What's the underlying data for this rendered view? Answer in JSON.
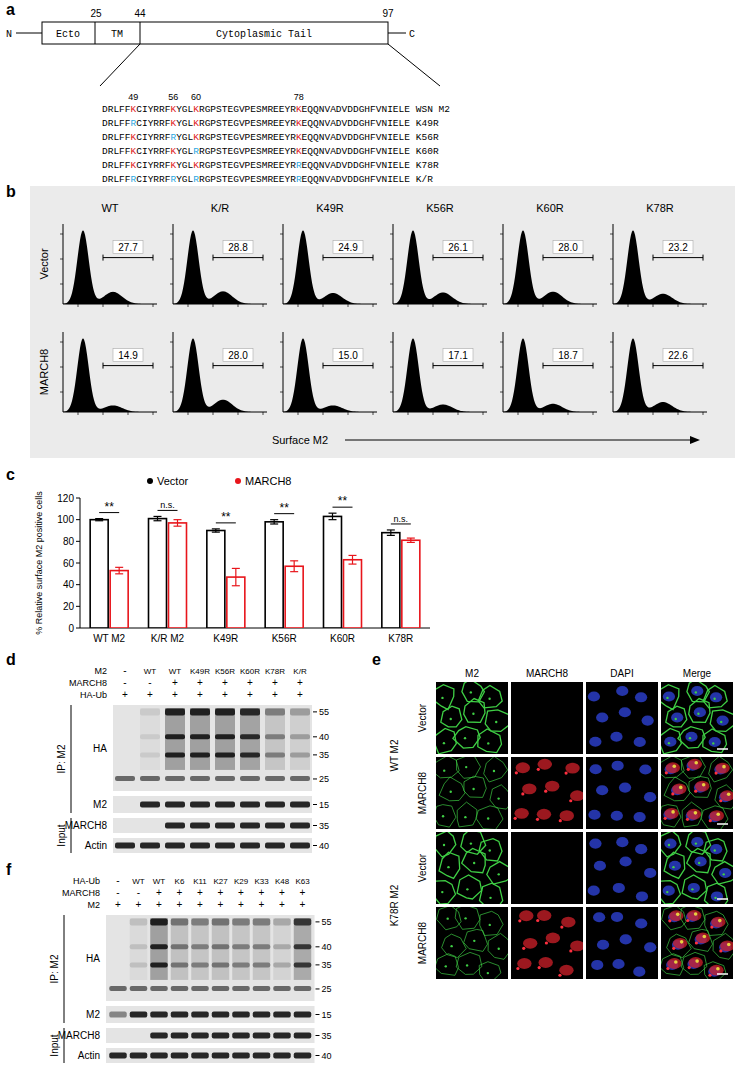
{
  "panel_a": {
    "label": "a",
    "boundaries": [
      25,
      44,
      97
    ],
    "terminals": [
      "N",
      "C"
    ],
    "domains": [
      "Ecto",
      "TM",
      "Cytoplasmic Tail"
    ],
    "lysines": [
      49,
      56,
      60,
      78
    ],
    "sequences": [
      {
        "seq": "DRLFFKCIYRRFKYGLKRGPSTEGVPESMREEYRKEQQNVADVDDGHFVNIELE",
        "name": "WSN M2"
      },
      {
        "seq": "DRLFFRCIYRRFKYGLKRGPSTEGVPESMREEYRKEQQNVADVDDGHFVNIELE",
        "name": "K49R"
      },
      {
        "seq": "DRLFFKCIYRRFRYGLKRGPSTEGVPESMREEYRKEQQNVADVDDGHFVNIELE",
        "name": "K56R"
      },
      {
        "seq": "DRLFFKCIYRRFKYGLRRGPSTEGVPESMREEYRKEQQNVADVDDGHFVNIELE",
        "name": "K60R"
      },
      {
        "seq": "DRLFFKCIYRRFKYGLKRGPSTEGVPESMREEYRREQQNVADVDDGHFVNIELE",
        "name": "K78R"
      },
      {
        "seq": "DRLFFRCIYRRFRYGLRRGPSTEGVPESMREEYRREQQNVADVDDGHFVNIELE",
        "name": "K/R"
      }
    ]
  },
  "panel_b": {
    "label": "b",
    "columns": [
      "WT",
      "K/R",
      "K49R",
      "K56R",
      "K60R",
      "K78R"
    ],
    "rows": [
      {
        "name": "Vector",
        "values": [
          27.7,
          28.8,
          24.9,
          26.1,
          28.0,
          23.2
        ],
        "value_labels": [
          "27.7",
          "28.8",
          "24.9",
          "26.1",
          "28.0",
          "23.2"
        ]
      },
      {
        "name": "MARCH8",
        "values": [
          14.9,
          28.0,
          15.0,
          17.1,
          18.7,
          22.6
        ],
        "value_labels": [
          "14.9",
          "28.0",
          "15.0",
          "17.1",
          "18.7",
          "22.6"
        ]
      }
    ],
    "x_label": "Surface M2"
  },
  "chart_data": {
    "type": "bar",
    "panel_label": "c",
    "categories": [
      "WT M2",
      "K/R M2",
      "K49R",
      "K56R",
      "K60R",
      "K78R"
    ],
    "series": [
      {
        "name": "Vector",
        "color": "#000000",
        "values": [
          100,
          101,
          90,
          98,
          103,
          88
        ],
        "errors": [
          1,
          2,
          1.5,
          2,
          3,
          2.5
        ]
      },
      {
        "name": "MARCH8",
        "color": "#e8151b",
        "values": [
          53,
          97,
          47,
          57,
          63,
          81
        ],
        "errors": [
          3,
          3,
          8,
          5,
          4,
          2
        ]
      }
    ],
    "annotations": [
      "**",
      "n.s.",
      "**",
      "**",
      "**",
      "n.s."
    ],
    "y_label": "% Relative surface M2 positive cells",
    "ylim": [
      0,
      120
    ],
    "yticks": [
      0,
      20,
      40,
      60,
      80,
      100,
      120
    ],
    "legend": "top",
    "grid": false
  },
  "panel_d": {
    "label": "d",
    "lane_rows": [
      {
        "name": "M2",
        "lanes": [
          "-",
          "WT",
          "WT",
          "K49R",
          "K56R",
          "K60R",
          "K78R",
          "K/R"
        ]
      },
      {
        "name": "MARCH8",
        "lanes": [
          "-",
          "-",
          "+",
          "+",
          "+",
          "+",
          "+",
          "+"
        ]
      },
      {
        "name": "HA-Ub",
        "lanes": [
          "+",
          "+",
          "+",
          "+",
          "+",
          "+",
          "+",
          "+"
        ]
      }
    ],
    "groups": [
      {
        "name": "IP: M2",
        "blots": [
          {
            "name": "HA",
            "markers": [
              55,
              40,
              35,
              25
            ],
            "intensity": [
              0,
              0.1,
              1,
              1,
              1,
              0.95,
              0.45,
              0.3
            ]
          },
          {
            "name": "M2",
            "markers": [
              15
            ],
            "intensity": [
              0,
              1,
              1,
              1,
              1,
              1,
              1,
              1
            ]
          }
        ]
      },
      {
        "name": "Input",
        "blots": [
          {
            "name": "MARCH8",
            "markers": [
              35
            ],
            "intensity": [
              0,
              0,
              1,
              1,
              1,
              1,
              1,
              1
            ]
          },
          {
            "name": "Actin",
            "markers": [
              40
            ],
            "intensity": [
              1,
              1,
              1,
              1,
              1,
              1,
              1,
              1
            ]
          }
        ]
      }
    ]
  },
  "panel_e": {
    "label": "e",
    "columns": [
      "M2",
      "MARCH8",
      "DAPI",
      "Merge"
    ],
    "groups": [
      {
        "name": "WT M2",
        "rows": [
          "Vector",
          "MARCH8"
        ]
      },
      {
        "name": "K78R M2",
        "rows": [
          "Vector",
          "MARCH8"
        ]
      }
    ]
  },
  "panel_f": {
    "label": "f",
    "lane_rows": [
      {
        "name": "HA-Ub",
        "lanes": [
          "-",
          "WT",
          "WT",
          "K6",
          "K11",
          "K27",
          "K29",
          "K33",
          "K48",
          "K63"
        ]
      },
      {
        "name": "MARCH8",
        "lanes": [
          "-",
          "-",
          "+",
          "+",
          "+",
          "+",
          "+",
          "+",
          "+",
          "+"
        ]
      },
      {
        "name": "M2",
        "lanes": [
          "+",
          "+",
          "+",
          "+",
          "+",
          "+",
          "+",
          "+",
          "+",
          "+"
        ]
      }
    ],
    "groups": [
      {
        "name": "IP: M2",
        "blots": [
          {
            "name": "HA",
            "markers": [
              55,
              40,
              35,
              25
            ],
            "intensity": [
              0,
              0.15,
              1,
              0.5,
              0.45,
              0.5,
              0.45,
              0.45,
              0.25,
              0.85
            ]
          },
          {
            "name": "M2",
            "markers": [
              15
            ],
            "intensity": [
              0.5,
              1,
              1,
              1,
              1,
              1,
              1,
              1,
              1,
              1
            ]
          }
        ]
      },
      {
        "name": "Input",
        "blots": [
          {
            "name": "MARCH8",
            "markers": [
              35
            ],
            "intensity": [
              0,
              0,
              1,
              1,
              1,
              1,
              1,
              1,
              1,
              1
            ]
          },
          {
            "name": "Actin",
            "markers": [
              40
            ],
            "intensity": [
              1,
              1,
              1,
              1,
              1,
              1,
              1,
              1,
              1,
              1
            ]
          }
        ]
      }
    ]
  }
}
